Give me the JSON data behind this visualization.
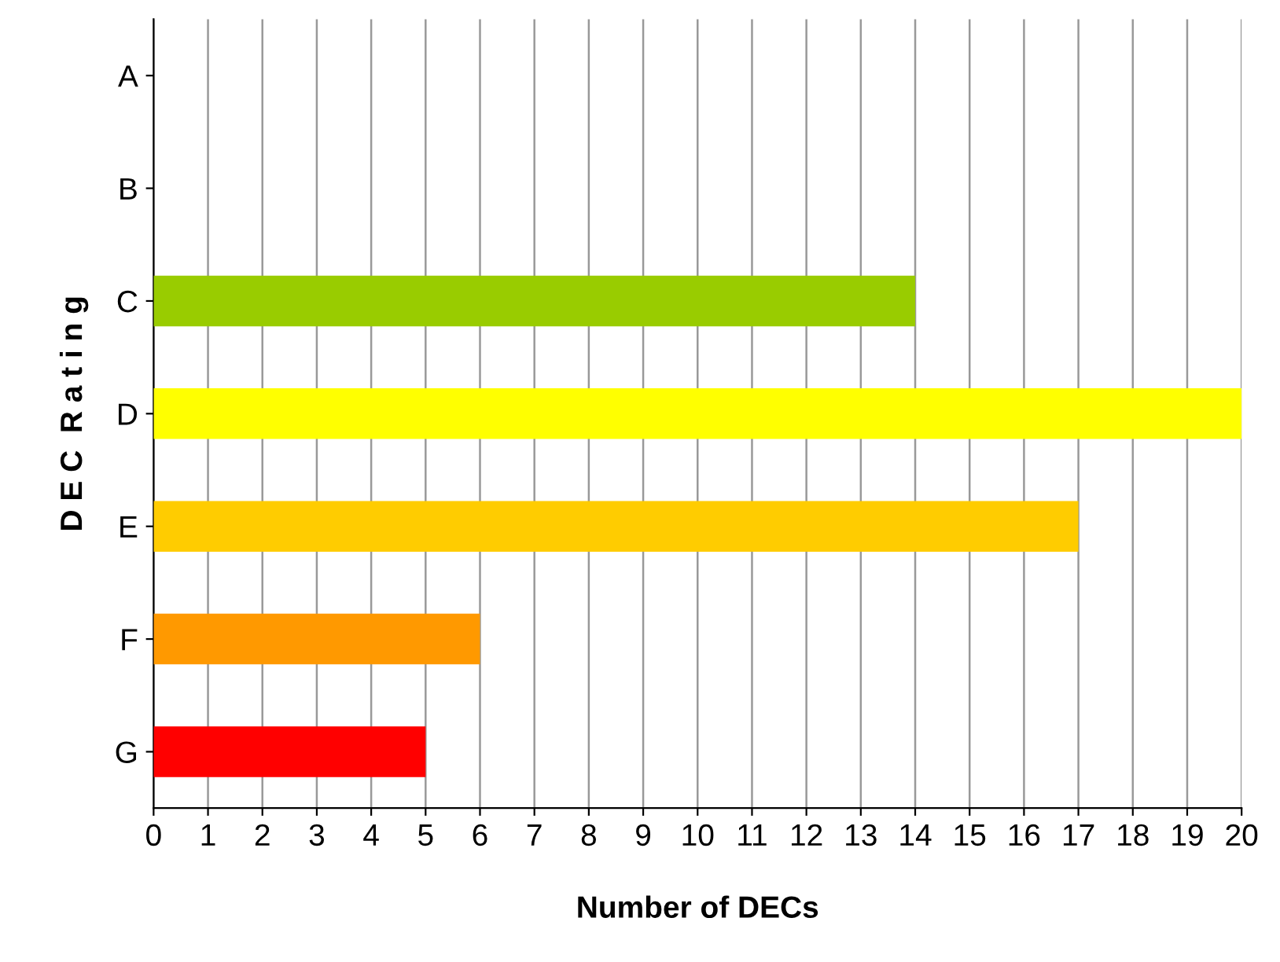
{
  "chart_data": {
    "type": "bar",
    "orientation": "horizontal",
    "xlabel": "Number of DECs",
    "ylabel": "D E C  R a t i n g",
    "categories": [
      "A",
      "B",
      "C",
      "D",
      "E",
      "F",
      "G"
    ],
    "values": [
      0,
      0,
      14,
      20,
      17,
      6,
      5
    ],
    "colors": [
      "#0b4d0b",
      "#0b4d4d",
      "#99cc00",
      "#ffff00",
      "#ffcc00",
      "#ff9900",
      "#ff0000"
    ],
    "xlim": [
      0,
      20
    ],
    "xticks": [
      0,
      1,
      2,
      3,
      4,
      5,
      6,
      7,
      8,
      9,
      10,
      11,
      12,
      13,
      14,
      15,
      16,
      17,
      18,
      19,
      20
    ],
    "grid": "x",
    "legend": false
  }
}
